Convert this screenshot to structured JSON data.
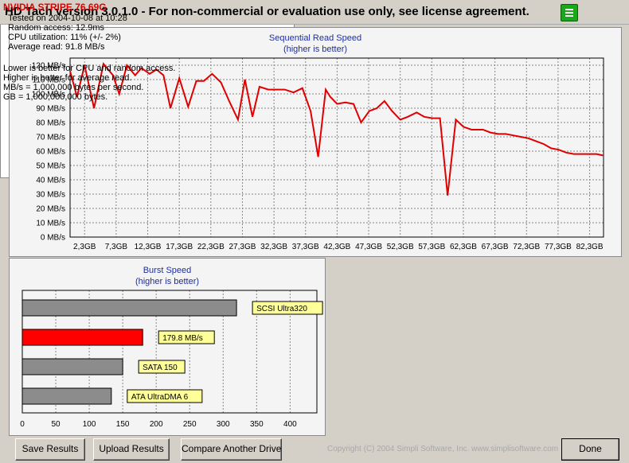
{
  "window": {
    "title": "HD Tach version 3.0.1.0  - For non-commercial or evaluation use only, see license agreement."
  },
  "colors": {
    "read_line": "#e00000",
    "burst_bar": "#ff0000",
    "compare_bar": "#8c8c8c",
    "label_bg": "#ffff99",
    "grid": "#888888"
  },
  "chart_data": [
    {
      "type": "line",
      "title": "Sequential Read Speed",
      "subtitle": "(higher is better)",
      "ylabel_unit": "MB/s",
      "y_ticks": [
        "120 MB/s",
        "110 MB/s",
        "100 MB/s",
        "90 MB/s",
        "80 MB/s",
        "70 MB/s",
        "60 MB/s",
        "50 MB/s",
        "40 MB/s",
        "30 MB/s",
        "20 MB/s",
        "10 MB/s",
        "0 MB/s"
      ],
      "x_ticks": [
        "2,3GB",
        "7,3GB",
        "12,3GB",
        "17,3GB",
        "22,3GB",
        "27,3GB",
        "32,3GB",
        "37,3GB",
        "42,3GB",
        "47,3GB",
        "52,3GB",
        "57,3GB",
        "62,3GB",
        "67,3GB",
        "72,3GB",
        "77,3GB",
        "82,3GB"
      ],
      "xlim": [
        0,
        84.5
      ],
      "ylim": [
        0,
        125
      ],
      "grid": true,
      "series": [
        {
          "x": [
            0,
            1.1,
            2.3,
            3.8,
            5.3,
            6.8,
            7.8,
            9.0,
            10.3,
            11.3,
            12.6,
            13.7,
            14.8,
            15.9,
            17.3,
            18.7,
            20.0,
            21.2,
            22.5,
            23.9,
            25.2,
            26.6,
            27.7,
            28.9,
            30.0,
            31.4,
            32.6,
            34.0,
            35.4,
            36.8,
            38.1,
            39.3,
            40.5,
            41.2,
            42.3,
            43.6,
            44.9,
            46.1,
            47.4,
            48.6,
            49.8,
            51.0,
            52.3,
            53.5,
            54.9,
            56.1,
            57.4,
            58.6,
            59.8,
            61.1,
            62.3,
            63.6,
            65.4,
            66.6,
            67.8,
            69.0,
            70.2,
            71.4,
            72.6,
            73.8,
            75.0,
            76.2,
            77.4,
            78.6,
            79.8,
            81.0,
            82.2,
            83.4,
            84.4
          ],
          "y": [
            116,
            98,
            120,
            90,
            121,
            113,
            100,
            120,
            113,
            118,
            114,
            117,
            113,
            90,
            111,
            91,
            109,
            109,
            114,
            108,
            95,
            82,
            110,
            84,
            105,
            103,
            103,
            103,
            101,
            104,
            88,
            56,
            103,
            98,
            93,
            94,
            93,
            80,
            88,
            90,
            95,
            88,
            82,
            84,
            87,
            84,
            83,
            83,
            29,
            82,
            77,
            75,
            75,
            73,
            72,
            72,
            71,
            70,
            69,
            67,
            65,
            62,
            61,
            59,
            58,
            58,
            58,
            58,
            57
          ]
        }
      ]
    },
    {
      "type": "bar",
      "orientation": "horizontal",
      "title": "Burst Speed",
      "subtitle": "(higher is better)",
      "xlim": [
        0,
        440
      ],
      "x_ticks": [
        "0",
        "50",
        "100",
        "150",
        "200",
        "250",
        "300",
        "350",
        "400"
      ],
      "categories": [
        "SCSI Ultra320",
        "179.8 MB/s",
        "SATA 150",
        "ATA UltraDMA 6"
      ],
      "values": [
        320,
        179.8,
        150,
        133
      ],
      "highlight_index": 1
    }
  ],
  "info": {
    "drive_name": "NVIDIA STRIPE 76.69G",
    "lines": [
      "Tested on 2004-10-08 at 10:28",
      "Random access: 12.9ms",
      "CPU utilization: 11% (+/- 2%)",
      "Average read: 91.8 MB/s"
    ],
    "notes": [
      "Lower is better for CPU and random access.",
      "Higher is better for average read.",
      "MB/s = 1,000,000 bytes per second.",
      "GB = 1,000,000,000 bytes."
    ]
  },
  "buttons": {
    "save": "Save Results",
    "upload": "Upload Results",
    "compare": "Compare Another Drive",
    "done": "Done"
  },
  "footer": {
    "copyright": "Copyright (C) 2004 Simpli Software, Inc. www.simplisoftware.com"
  }
}
